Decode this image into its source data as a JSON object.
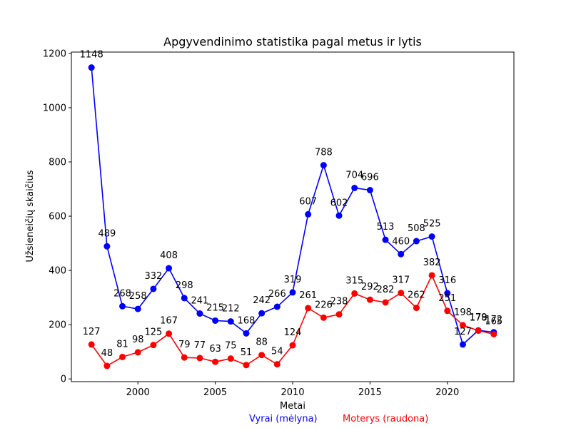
{
  "chart_data": {
    "type": "line",
    "title": "Apgyvendinimo statistika pagal metus ir lytis",
    "xlabel": "Metai",
    "ylabel": "Užsieneičių skaičius",
    "x": [
      1997,
      1998,
      1999,
      2000,
      2001,
      2002,
      2003,
      2004,
      2005,
      2006,
      2007,
      2008,
      2009,
      2010,
      2011,
      2012,
      2013,
      2014,
      2015,
      2016,
      2017,
      2018,
      2019,
      2020,
      2021,
      2022,
      2023
    ],
    "xticks": [
      2000,
      2005,
      2010,
      2015,
      2020
    ],
    "yticks": [
      0,
      200,
      400,
      600,
      800,
      1000,
      1200
    ],
    "xlim": [
      1995.7,
      2024.3
    ],
    "ylim": [
      -10,
      1205
    ],
    "grid": false,
    "series": [
      {
        "color": "#0000ff",
        "values": [
          1148,
          489,
          268,
          258,
          332,
          408,
          298,
          241,
          215,
          212,
          168,
          242,
          266,
          319,
          607,
          788,
          602,
          704,
          696,
          513,
          460,
          508,
          525,
          316,
          127,
          179,
          172
        ]
      },
      {
        "color": "#ff0000",
        "values": [
          127,
          48,
          81,
          98,
          125,
          167,
          79,
          77,
          63,
          75,
          51,
          88,
          54,
          124,
          261,
          226,
          238,
          315,
          292,
          282,
          317,
          262,
          382,
          251,
          198,
          178,
          165
        ]
      }
    ],
    "legend_notes": [
      {
        "text": "Vyrai (mėlyna)",
        "color": "#0000ff"
      },
      {
        "text": "Moterys (raudona)",
        "color": "#ff0000"
      }
    ]
  }
}
